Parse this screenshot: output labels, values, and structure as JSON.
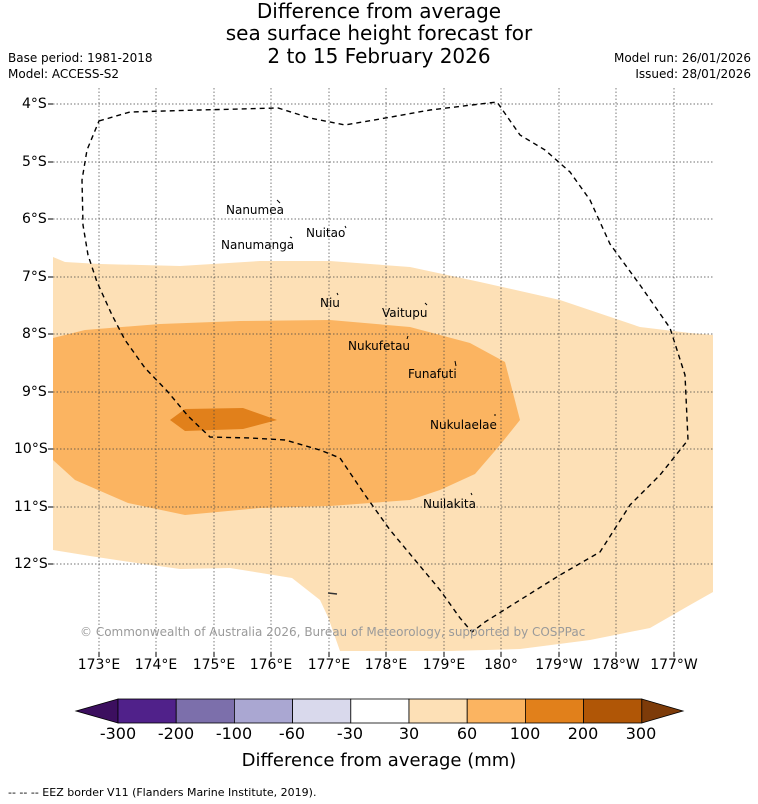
{
  "title": {
    "line1": "Difference from average",
    "line2": "sea surface height forecast for",
    "line3": "2 to 15 February 2026"
  },
  "info": {
    "base_period": "Base period: 1981-2018",
    "model": "Model: ACCESS-S2",
    "model_run": "Model run: 26/01/2026",
    "issued": "Issued: 28/01/2026"
  },
  "axes": {
    "lat_labels": [
      "4°S",
      "5°S",
      "6°S",
      "7°S",
      "8°S",
      "9°S",
      "10°S",
      "11°S",
      "12°S"
    ],
    "lon_labels": [
      "173°E",
      "174°E",
      "175°E",
      "176°E",
      "177°E",
      "178°E",
      "179°E",
      "180°",
      "179°W",
      "178°W",
      "177°W"
    ]
  },
  "islands": [
    "Nanumea",
    "Nuitao",
    "Nanumanga",
    "Niu",
    "Vaitupu",
    "Nukufetau",
    "Funafuti",
    "Nukulaelae",
    "Nuilakita"
  ],
  "copyright": "© Commonwealth of Australia 2026, Bureau of Meteorology, supported by COSPPac",
  "colorbar": {
    "labels": [
      "-300",
      "-200",
      "-100",
      "-60",
      "-30",
      "30",
      "60",
      "100",
      "200",
      "300"
    ],
    "title": "Difference from average (mm)",
    "colors": [
      "#3c0f5f",
      "#50218a",
      "#7c6fab",
      "#aaa7d2",
      "#d9d9ec",
      "#ffffff",
      "#fde0b6",
      "#fbb461",
      "#e1801b",
      "#b05606",
      "#7d3b09"
    ]
  },
  "legend": {
    "eez": "--  --  -- EEZ border V11 (Flanders Marine Institute, 2019)."
  }
}
